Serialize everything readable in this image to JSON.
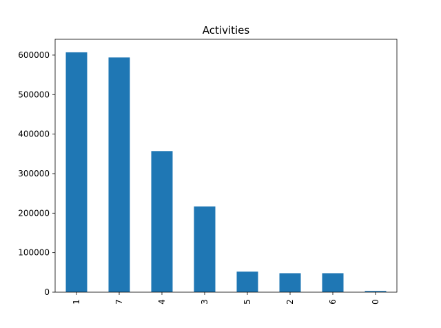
{
  "chart_data": {
    "type": "bar",
    "title": "Activities",
    "xlabel": "",
    "ylabel": "",
    "categories": [
      "1",
      "7",
      "4",
      "3",
      "5",
      "2",
      "6",
      "0"
    ],
    "values": [
      607000,
      594000,
      357000,
      217000,
      52000,
      48000,
      48000,
      3000
    ],
    "ylim": [
      0,
      640000
    ],
    "yticks": [
      0,
      100000,
      200000,
      300000,
      400000,
      500000,
      600000
    ],
    "ytick_labels": [
      "0",
      "100000",
      "200000",
      "300000",
      "400000",
      "500000",
      "600000"
    ],
    "bar_color": "#1f77b4",
    "grid": false,
    "legend": "none"
  }
}
